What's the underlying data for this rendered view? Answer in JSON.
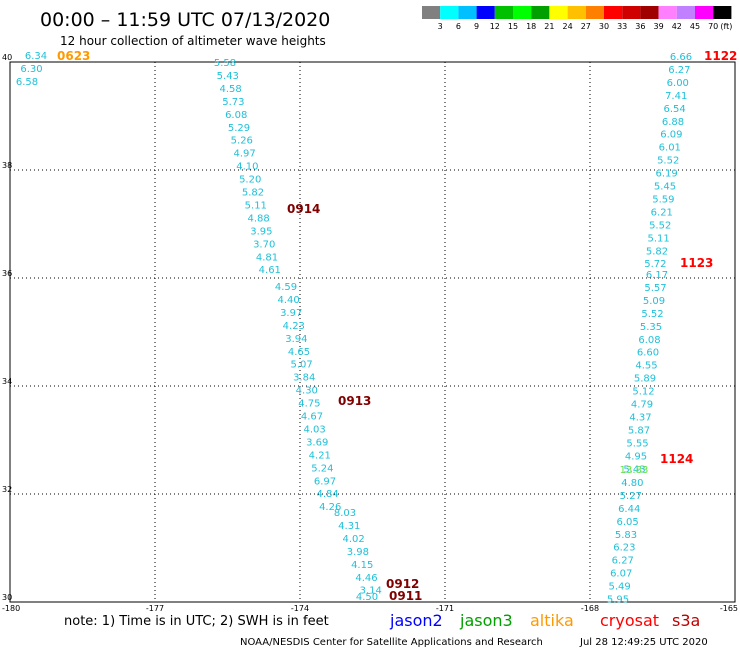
{
  "header": {
    "title": "00:00 – 11:59 UTC 07/13/2020",
    "subtitle": "12 hour collection of altimeter wave heights"
  },
  "color_scale": {
    "labels": [
      "3",
      "6",
      "9",
      "12",
      "15",
      "18",
      "21",
      "24",
      "27",
      "30",
      "33",
      "36",
      "39",
      "42",
      "45",
      "70"
    ],
    "unit": "(ft)",
    "colors": [
      "#808080",
      "#00ffff",
      "#00c0ff",
      "#0000ff",
      "#00c000",
      "#00ff00",
      "#00a000",
      "#ffff00",
      "#ffc000",
      "#ff8000",
      "#ff0000",
      "#d00000",
      "#a00000",
      "#ff80ff",
      "#c080ff",
      "#ff00ff",
      "#000000"
    ]
  },
  "axes": {
    "lat_ticks": [
      "40",
      "38",
      "36",
      "34",
      "32",
      "30"
    ],
    "lon_ticks": [
      "-180",
      "-177",
      "-174",
      "-171",
      "-168",
      "-165"
    ]
  },
  "tracks": [
    {
      "label": "0623",
      "color": "#ff9900",
      "values": [
        "6.34",
        "6.30",
        "6.58"
      ]
    },
    {
      "label": "0914",
      "color": "#800000",
      "values": [
        "5.58",
        "5.43",
        "4.58",
        "5.73",
        "6.08",
        "5.29",
        "5.26",
        "4.97",
        "4.10",
        "5.20",
        "5.82",
        "5.11",
        "4.88",
        "3.95",
        "3.70",
        "4.81",
        "4.61"
      ]
    },
    {
      "label": "0913",
      "color": "#800000",
      "values": [
        "4.59",
        "4.40",
        "3.97",
        "4.23",
        "3.94",
        "4.65",
        "5.07",
        "3.84",
        "4.30",
        "4.75",
        "4.67",
        "4.03",
        "3.69",
        "4.21",
        "5.24",
        "6.97",
        "4.84",
        "4.26"
      ]
    },
    {
      "label": "0912",
      "color": "#800000",
      "values": [
        "8.03",
        "4.31",
        "4.02",
        "3.98",
        "4.15",
        "4.46",
        "3.14"
      ]
    },
    {
      "label": "0911",
      "color": "#800000",
      "values": [
        "4.50"
      ]
    },
    {
      "label": "1122",
      "color": "#ff0000",
      "values": [
        "6.66",
        "6.27",
        "6.00",
        "7.41",
        "6.54",
        "6.88",
        "6.09",
        "6.01",
        "5.52",
        "6.19",
        "5.45",
        "5.59",
        "6.21",
        "5.52",
        "5.11",
        "5.82",
        "5.72"
      ]
    },
    {
      "label": "1123",
      "color": "#ff0000",
      "values": [
        "6.17",
        "5.57",
        "5.09",
        "5.52",
        "5.35",
        "6.08",
        "6.60",
        "4.55",
        "5.89",
        "5.12",
        "4.79",
        "4.37",
        "5.87",
        "5.55",
        "4.95",
        "5.43"
      ]
    },
    {
      "label": "1124",
      "color": "#ff0000",
      "values": [
        "13.83",
        "4.80",
        "5.27",
        "6.44",
        "6.05",
        "5.83",
        "6.23",
        "6.27",
        "6.07",
        "5.49",
        "5.95"
      ]
    }
  ],
  "footer": {
    "note": "note: 1) Time is in UTC; 2) SWH is in feet",
    "satellites": [
      {
        "name": "jason2",
        "color": "#0000ff"
      },
      {
        "name": "jason3",
        "color": "#00a000"
      },
      {
        "name": "altika",
        "color": "#ff9900"
      },
      {
        "name": "cryosat",
        "color": "#ff0000"
      },
      {
        "name": "s3a",
        "color": "#c00000"
      }
    ],
    "credit": "NOAA/NESDIS Center for Satellite Applications and Research",
    "timestamp": "Jul 28 12:49:25 UTC 2020"
  }
}
